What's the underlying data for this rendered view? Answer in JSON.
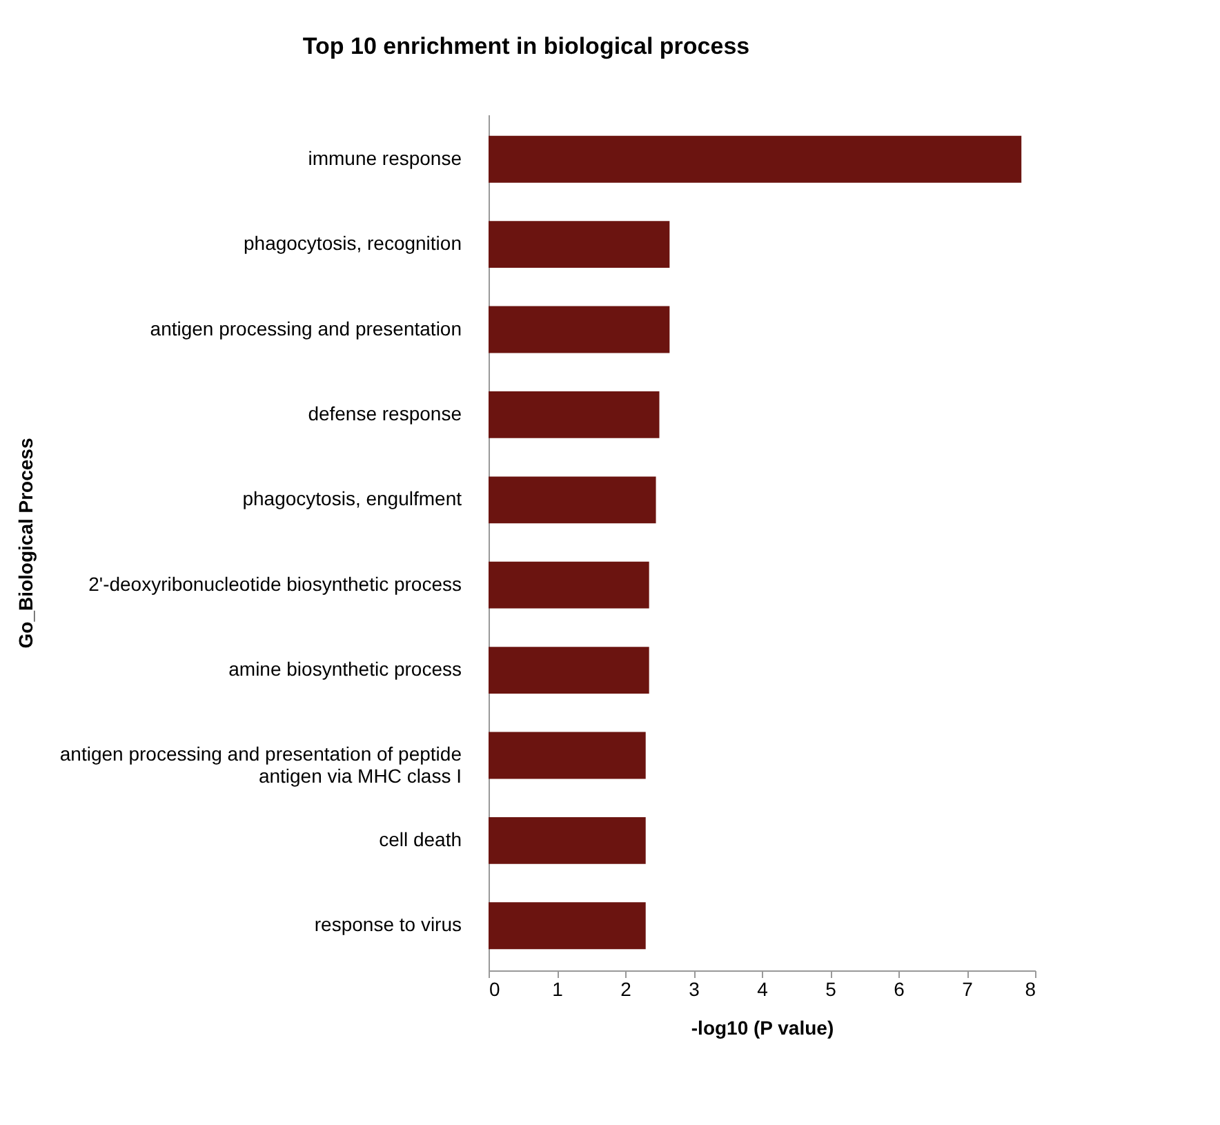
{
  "chart_data": {
    "type": "bar",
    "orientation": "horizontal",
    "title": "Top 10 enrichment in biological process",
    "xlabel": "-log10 (P value)",
    "ylabel": "Go_Biological Process",
    "categories": [
      "immune response",
      "phagocytosis, recognition",
      "antigen processing and presentation",
      "defense response",
      "phagocytosis, engulfment",
      "2'-deoxyribonucleotide biosynthetic process",
      "amine biosynthetic process",
      "antigen processing and presentation of peptide antigen via MHC class I",
      "cell death",
      "response to virus"
    ],
    "values": [
      7.8,
      2.65,
      2.65,
      2.5,
      2.45,
      2.35,
      2.35,
      2.3,
      2.3,
      2.3
    ],
    "color": "#6b1410",
    "xlim": [
      0,
      8
    ],
    "xticks": [
      0,
      1,
      2,
      3,
      4,
      5,
      6,
      7,
      8
    ],
    "grid": false
  }
}
